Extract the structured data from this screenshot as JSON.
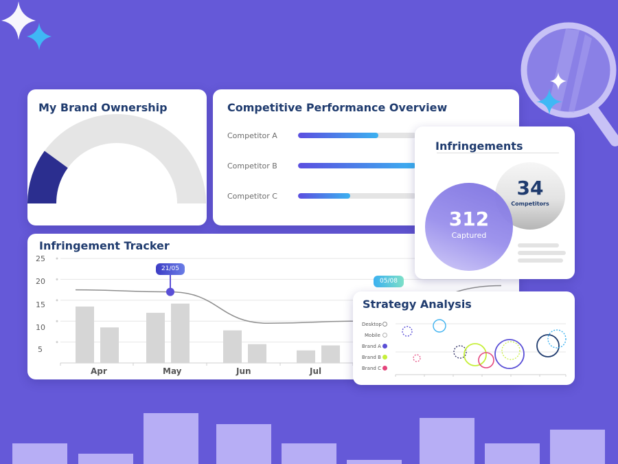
{
  "cards": {
    "brand_ownership": {
      "title": "My Brand Ownership",
      "fill_fraction": 0.2,
      "colors": {
        "fill": "#2b2e8f",
        "track": "#e5e5e5"
      }
    },
    "competitive": {
      "title": "Competitive Performance Overview",
      "competitors": [
        {
          "label": "Competitor A",
          "fill_fraction": 0.68
        },
        {
          "label": "Competitor B",
          "fill_fraction": 1.0
        },
        {
          "label": "Competitor C",
          "fill_fraction": 0.44
        }
      ],
      "colors": {
        "start": "#5b4ee0",
        "end": "#3bb1f0",
        "track": "#e4e4e4"
      }
    },
    "infringements": {
      "title": "Infringements",
      "captured": {
        "value": "312",
        "label": "Captured"
      },
      "competitors": {
        "value": "34",
        "label": "Competitors"
      }
    },
    "tracker": {
      "title": "Infringement Tracker",
      "y_ticks": [
        "25",
        "20",
        "15",
        "10",
        "5"
      ],
      "months": [
        "Apr",
        "May",
        "Jun",
        "Jul"
      ],
      "callouts": [
        "21/05",
        "05/08"
      ],
      "colors": {
        "bar": "#d6d6d6",
        "line": "#8e8e8e",
        "point": "#5a4fd6"
      }
    },
    "strategy": {
      "title": "Strategy Analysis",
      "legend": [
        {
          "label": "Desktop",
          "color": "#ffffff",
          "border": "#8a8a8a"
        },
        {
          "label": "Mobile",
          "color": "#ffffff",
          "border": "#b0b0b0"
        },
        {
          "label": "Brand A",
          "color": "#5a4fd6",
          "border": "#5a4fd6"
        },
        {
          "label": "Brand B",
          "color": "#c6ef3a",
          "border": "#c6ef3a"
        },
        {
          "label": "Brand C",
          "color": "#e4457c",
          "border": "#e4457c"
        }
      ]
    }
  },
  "chart_data": {
    "type": "bar",
    "title": "Infringement Tracker",
    "categories": [
      "Apr",
      "May",
      "Jun",
      "Jul"
    ],
    "series": [
      {
        "values": [
          13.5,
          12.0,
          7.8,
          3.0
        ]
      },
      {
        "values": [
          8.5,
          14.2,
          4.5,
          4.2
        ]
      }
    ],
    "trend_line": [
      {
        "x": "Apr",
        "y": 17.5
      },
      {
        "x": "May",
        "y": 17.0
      },
      {
        "x": "Jun",
        "y": 9.5
      },
      {
        "x": "Jul",
        "y": 10.0
      }
    ],
    "ylim": [
      0,
      25
    ],
    "grid": true
  },
  "background": {
    "color": "#6559d8",
    "bar_color": "#b7aef5"
  }
}
